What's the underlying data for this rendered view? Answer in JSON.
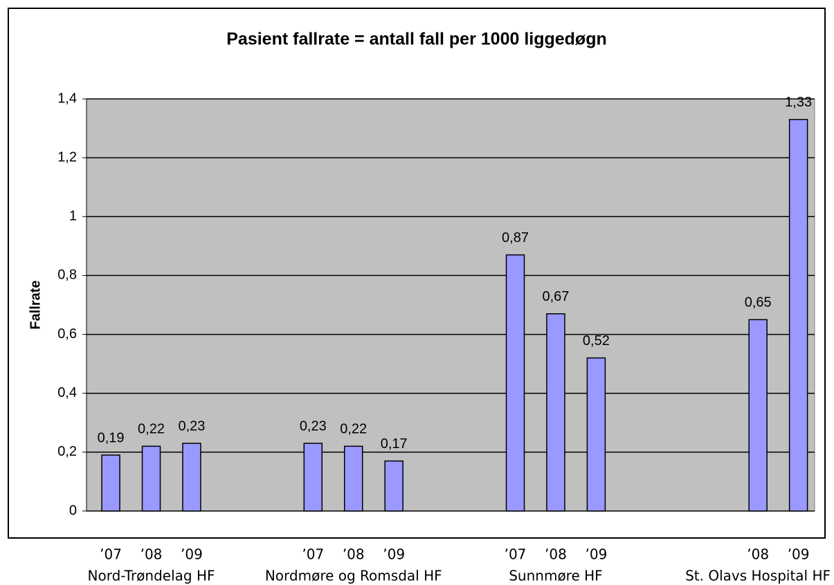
{
  "chart_data": {
    "type": "bar",
    "title": "Pasient fallrate = antall fall per 1000 liggedøgn",
    "y_label": "Fallrate",
    "categories": [
      "’07",
      "’08",
      "’09",
      null,
      null,
      "’07",
      "’08",
      "’09",
      null,
      null,
      "’07",
      "’08",
      "’09",
      null,
      null,
      null,
      "’08",
      "’09"
    ],
    "values": [
      0.19,
      0.22,
      0.23,
      null,
      null,
      0.23,
      0.22,
      0.17,
      null,
      null,
      0.87,
      0.67,
      0.52,
      null,
      null,
      null,
      0.65,
      1.33
    ],
    "value_labels": [
      "0,19",
      "0,22",
      "0,23",
      null,
      null,
      "0,23",
      "0,22",
      "0,17",
      null,
      null,
      "0,87",
      "0,67",
      "0,52",
      null,
      null,
      null,
      "0,65",
      "1,33"
    ],
    "group_labels": [
      "Nord-Trøndelag HF",
      "Nordmøre og Romsdal HF",
      "Sunnmøre HF",
      "St. Olavs Hospital HF"
    ],
    "color": "#9999ff",
    "ylim": [
      0,
      1.4
    ],
    "yticks": [
      0,
      {
        "value": 0.2,
        "label": "0,2"
      },
      {
        "value": 0.4,
        "label": "0,4"
      },
      {
        "value": 0.6,
        "label": "0,6"
      },
      {
        "value": 0.8,
        "label": "0,8"
      },
      1,
      {
        "value": 1.2,
        "label": "1,2"
      },
      {
        "value": 1.4,
        "label": "1,4"
      }
    ],
    "grid": true
  }
}
